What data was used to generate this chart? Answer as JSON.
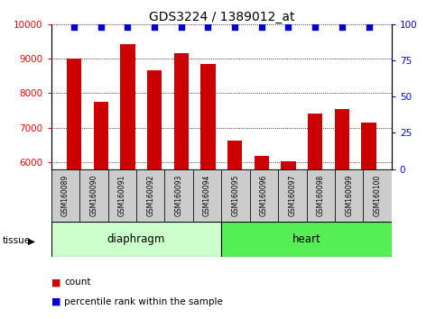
{
  "title": "GDS3224 / 1389012_at",
  "samples": [
    "GSM160089",
    "GSM160090",
    "GSM160091",
    "GSM160092",
    "GSM160093",
    "GSM160094",
    "GSM160095",
    "GSM160096",
    "GSM160097",
    "GSM160098",
    "GSM160099",
    "GSM160100"
  ],
  "counts": [
    9000,
    7750,
    9420,
    8650,
    9150,
    8850,
    6620,
    6180,
    6020,
    7400,
    7530,
    7150
  ],
  "percentiles": [
    100,
    100,
    100,
    100,
    100,
    100,
    100,
    100,
    100,
    100,
    100,
    100
  ],
  "bar_color": "#CC0000",
  "percentile_color": "#0000CC",
  "ylim_left": [
    5800,
    10000
  ],
  "ylim_right": [
    0,
    100
  ],
  "yticks_left": [
    6000,
    7000,
    8000,
    9000,
    10000
  ],
  "yticks_right": [
    0,
    25,
    50,
    75,
    100
  ],
  "bar_width": 0.55,
  "title_fontsize": 10,
  "tick_fontsize": 7.5,
  "sample_fontsize": 5.5,
  "tissue_fontsize": 8.5,
  "legend_fontsize": 7.5,
  "diaphragm_color": "#CCFFCC",
  "heart_color": "#55EE55",
  "sample_box_color": "#CCCCCC",
  "plot_bg": "#FFFFFF"
}
